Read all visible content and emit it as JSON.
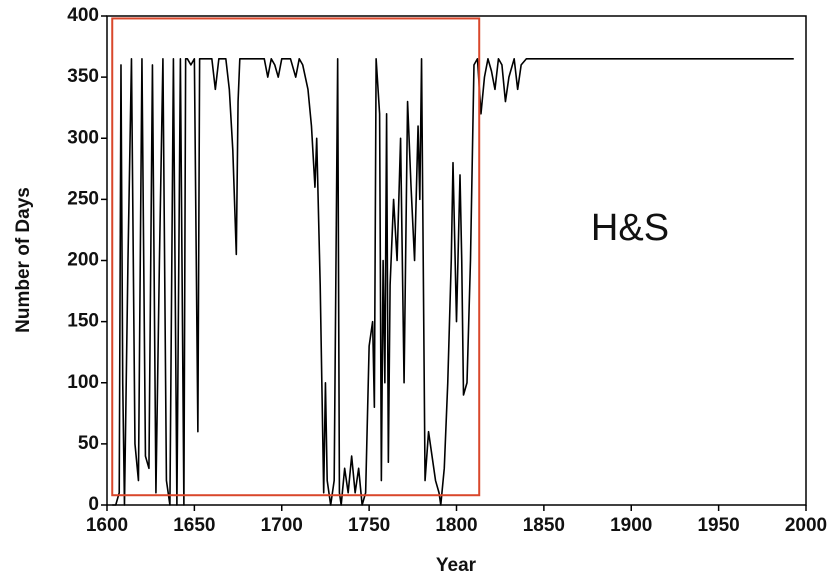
{
  "chart_data": {
    "type": "line",
    "xlabel": "Year",
    "ylabel": "Number of Days",
    "annotation": "H&S",
    "color": "#000000",
    "x": [
      1603,
      1605,
      1607,
      1608,
      1609,
      1610,
      1612,
      1614,
      1616,
      1618,
      1620,
      1622,
      1624,
      1626,
      1628,
      1630,
      1632,
      1634,
      1636,
      1638,
      1640,
      1642,
      1644,
      1645,
      1646,
      1648,
      1650,
      1652,
      1653,
      1656,
      1660,
      1662,
      1664,
      1668,
      1670,
      1672,
      1674,
      1675,
      1676,
      1680,
      1685,
      1690,
      1692,
      1694,
      1696,
      1698,
      1700,
      1705,
      1708,
      1710,
      1712,
      1715,
      1717,
      1719,
      1720,
      1722,
      1724,
      1725,
      1726,
      1728,
      1730,
      1732,
      1733,
      1734,
      1736,
      1738,
      1740,
      1742,
      1744,
      1746,
      1748,
      1750,
      1752,
      1753,
      1754,
      1756,
      1757,
      1758,
      1759,
      1760,
      1761,
      1762,
      1764,
      1766,
      1768,
      1770,
      1772,
      1774,
      1776,
      1778,
      1779,
      1780,
      1782,
      1784,
      1786,
      1788,
      1790,
      1791,
      1793,
      1795,
      1797,
      1798,
      1800,
      1802,
      1803,
      1804,
      1806,
      1808,
      1810,
      1812,
      1814,
      1816,
      1818,
      1820,
      1822,
      1824,
      1826,
      1828,
      1830,
      1833,
      1835,
      1837,
      1840,
      1850,
      1900,
      1950,
      1993
    ],
    "values": [
      0,
      0,
      10,
      360,
      100,
      0,
      200,
      365,
      50,
      20,
      365,
      40,
      30,
      360,
      10,
      200,
      365,
      20,
      0,
      365,
      0,
      365,
      0,
      365,
      365,
      360,
      365,
      60,
      365,
      365,
      365,
      340,
      365,
      365,
      340,
      290,
      205,
      330,
      365,
      365,
      365,
      365,
      350,
      365,
      360,
      350,
      365,
      365,
      350,
      365,
      360,
      340,
      310,
      260,
      300,
      180,
      10,
      100,
      20,
      0,
      20,
      365,
      10,
      0,
      30,
      10,
      40,
      10,
      30,
      0,
      10,
      130,
      150,
      80,
      365,
      320,
      20,
      200,
      100,
      320,
      35,
      180,
      250,
      200,
      300,
      100,
      330,
      260,
      200,
      310,
      250,
      365,
      20,
      60,
      40,
      20,
      10,
      0,
      30,
      100,
      200,
      280,
      150,
      270,
      200,
      90,
      100,
      200,
      360,
      365,
      320,
      350,
      365,
      355,
      340,
      365,
      360,
      330,
      350,
      365,
      340,
      360,
      365,
      365,
      365,
      365,
      365
    ],
    "xlim": [
      1600,
      2000
    ],
    "ylim": [
      0,
      400
    ],
    "xticks": [
      1600,
      1650,
      1700,
      1750,
      1800,
      1850,
      1900,
      1950,
      2000
    ],
    "yticks": [
      0,
      50,
      100,
      150,
      200,
      250,
      300,
      350,
      400
    ],
    "highlight_box": {
      "x": [
        1603,
        1813
      ],
      "y": [
        8,
        398
      ],
      "color": "#d9472b"
    }
  }
}
